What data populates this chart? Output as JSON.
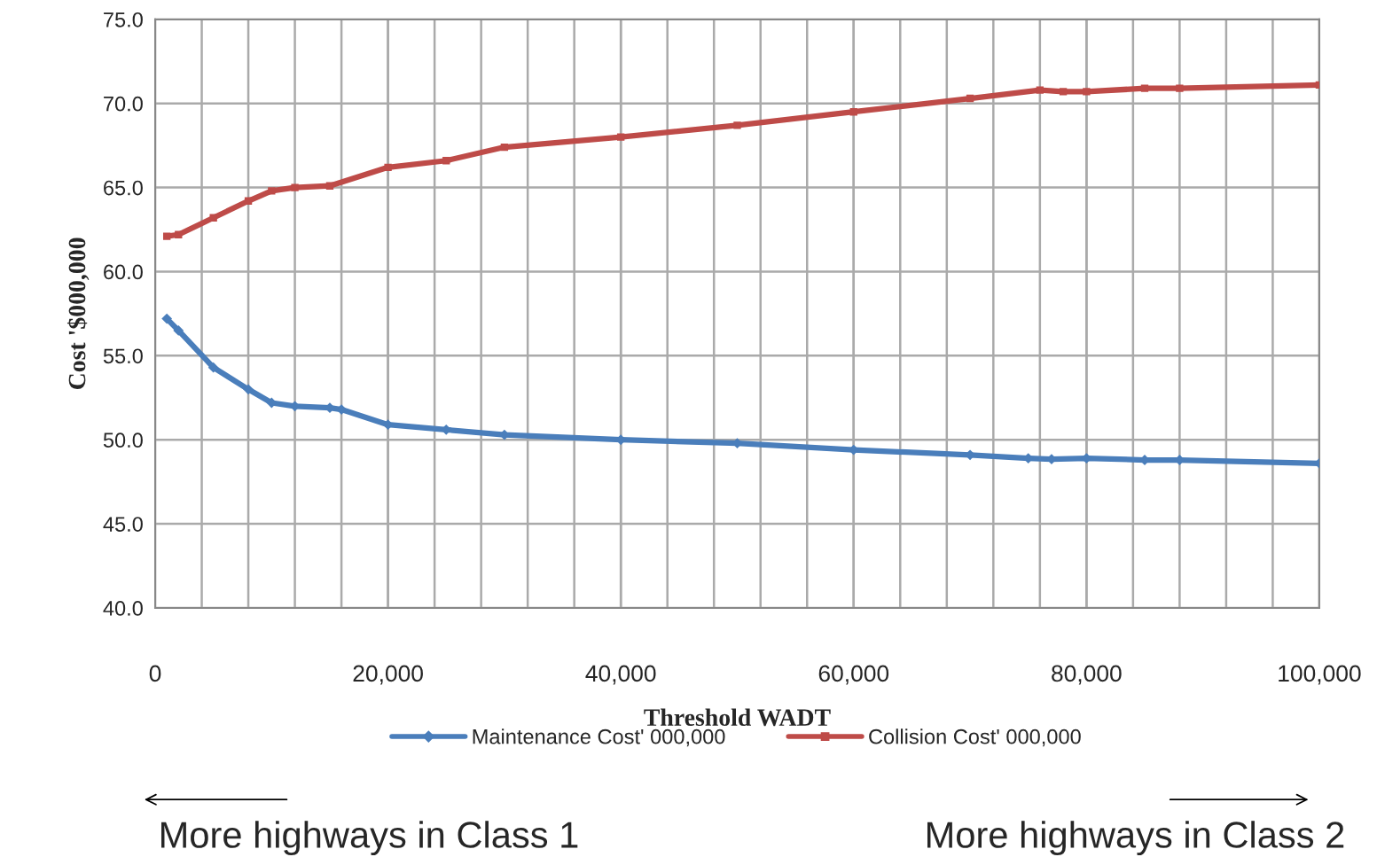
{
  "chart_data": {
    "type": "line",
    "xlabel": "Threshold WADT",
    "ylabel": "Cost '$000,000",
    "xlim": [
      0,
      100000
    ],
    "xticks": [
      {
        "value": 0,
        "label": "0"
      },
      {
        "value": 20000,
        "label": "20,000"
      },
      {
        "value": 40000,
        "label": "40,000"
      },
      {
        "value": 60000,
        "label": "60,000"
      },
      {
        "value": 80000,
        "label": "80,000"
      },
      {
        "value": 100000,
        "label": "100,000"
      }
    ],
    "ylim": [
      40,
      75
    ],
    "yticks": [
      {
        "value": 40,
        "label": "40.0"
      },
      {
        "value": 45,
        "label": "45.0"
      },
      {
        "value": 50,
        "label": "50.0"
      },
      {
        "value": 55,
        "label": "55.0"
      },
      {
        "value": 60,
        "label": "60.0"
      },
      {
        "value": 65,
        "label": "65.0"
      },
      {
        "value": 70,
        "label": "70.0"
      },
      {
        "value": 75,
        "label": "75.0"
      }
    ],
    "grid": true,
    "legend": "bottom",
    "line_style": "solid",
    "series": [
      {
        "name": "Maintenance Cost' 000,000",
        "color": "#4a7ebb",
        "marker": "diamond",
        "x": [
          1000,
          2000,
          5000,
          8000,
          10000,
          12000,
          15000,
          16000,
          20000,
          25000,
          30000,
          40000,
          50000,
          60000,
          70000,
          75000,
          77000,
          80000,
          85000,
          88000,
          100000
        ],
        "values": [
          57.2,
          56.5,
          54.3,
          53.0,
          52.2,
          52.0,
          51.9,
          51.8,
          50.9,
          50.6,
          50.3,
          50.0,
          49.8,
          49.4,
          49.1,
          48.9,
          48.85,
          48.9,
          48.8,
          48.8,
          48.6
        ]
      },
      {
        "name": "Collision Cost' 000,000",
        "color": "#be4b48",
        "marker": "square",
        "x": [
          1000,
          2000,
          5000,
          8000,
          10000,
          12000,
          15000,
          20000,
          25000,
          30000,
          40000,
          50000,
          60000,
          70000,
          76000,
          78000,
          80000,
          85000,
          88000,
          100000
        ],
        "values": [
          62.1,
          62.2,
          63.2,
          64.2,
          64.8,
          65.0,
          65.1,
          66.2,
          66.6,
          67.4,
          68.0,
          68.7,
          69.5,
          70.3,
          70.8,
          70.7,
          70.7,
          70.9,
          70.9,
          71.1
        ]
      }
    ],
    "annotations": [
      "More highways in Class 1",
      "More highways in Class 2"
    ]
  }
}
